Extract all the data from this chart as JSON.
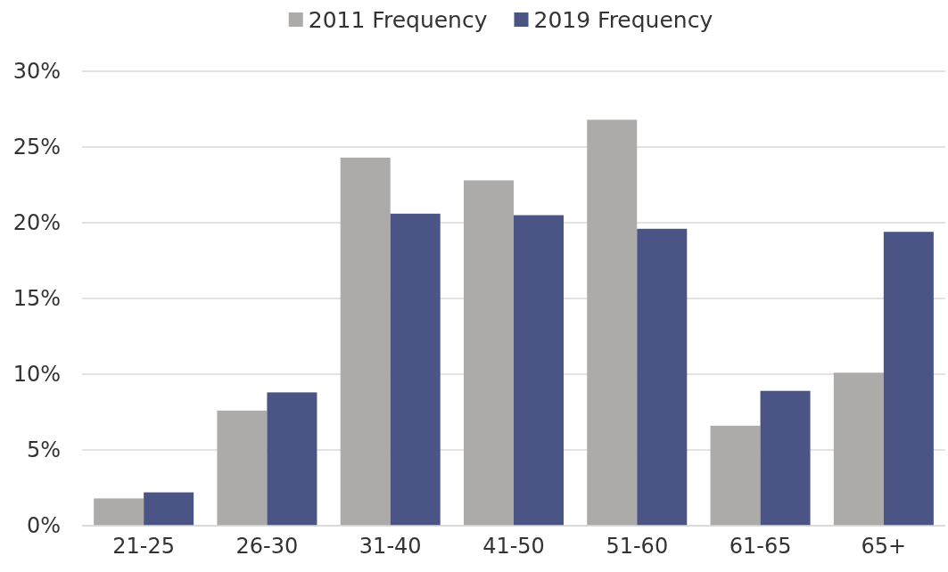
{
  "chart_data": {
    "type": "bar",
    "categories": [
      "21-25",
      "26-30",
      "31-40",
      "41-50",
      "51-60",
      "61-65",
      "65+"
    ],
    "series": [
      {
        "name": "2011 Frequency",
        "color": "#adaaaa",
        "values": [
          1.8,
          7.6,
          24.3,
          22.8,
          26.8,
          6.6,
          10.1
        ]
      },
      {
        "name": "2019 Frequency",
        "color": "#4a5586",
        "values": [
          2.2,
          8.8,
          20.6,
          20.5,
          19.6,
          8.9,
          19.4
        ]
      }
    ],
    "ylim": [
      0,
      30
    ],
    "yticks": [
      {
        "value": 0,
        "label": "0%"
      },
      {
        "value": 5,
        "label": "5%"
      },
      {
        "value": 10,
        "label": "10%"
      },
      {
        "value": 15,
        "label": "15%"
      },
      {
        "value": 20,
        "label": "20%"
      },
      {
        "value": 25,
        "label": "25%"
      },
      {
        "value": 30,
        "label": "30%"
      }
    ],
    "grid": "y",
    "legend": "top"
  }
}
